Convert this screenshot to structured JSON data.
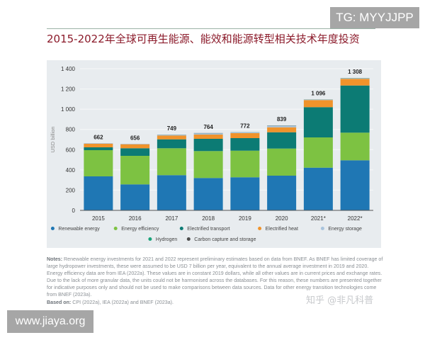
{
  "badge": "TG: MYYJJPP",
  "site": "www.jiaya.org",
  "watermark": "知乎 @非凡科普",
  "title": "2015-2022年全球可再生能源、能效和能源转型相关技术年度投资",
  "notes": {
    "label": "Notes:",
    "text": " Renewable energy investments for 2021 and 2022 represent preliminary estimates based on data from BNEF. As BNEF has limited coverage of large hydropower investments, these were assumed to be USD 7 billion per year, equivalent to the annual average investment in 2019 and 2020. Energy efficiency data are from IEA (2022a). These values are in constant 2019 dollars, while all other values are in current prices and exchange rates. Due to the lack of more granular data, the units could not be harmonised across the databases. For this reason, these numbers are presented together for indicative purposes only and should not be used to make comparisons between data sources. Data for other energy transition technologies come from BNEF (2023a).",
    "based_label": "Based on:",
    "based_text": " CPI (2022a), IEA (2022a) and BNEF (2023a)."
  },
  "chart_data": {
    "type": "bar",
    "stacked": true,
    "title": "",
    "xlabel": "",
    "ylabel": "USD billion",
    "ylim": [
      0,
      1400
    ],
    "yticks": [
      "0",
      "200",
      "400",
      "600",
      "800",
      "1 000",
      "1 200",
      "1 400"
    ],
    "ytick_values": [
      0,
      200,
      400,
      600,
      800,
      1000,
      1200,
      1400
    ],
    "grid": true,
    "legend_position": "bottom",
    "categories": [
      "2015",
      "2016",
      "2017",
      "2018",
      "2019",
      "2020",
      "2021*",
      "2022*"
    ],
    "totals": [
      "662",
      "656",
      "749",
      "764",
      "772",
      "839",
      "1 096",
      "1 308"
    ],
    "series": [
      {
        "name": "Renewable energy",
        "color": "#1f77b4",
        "values": [
          336,
          257,
          348,
          320,
          327,
          343,
          422,
          495
        ]
      },
      {
        "name": "Energy efficiency",
        "color": "#7dc242",
        "values": [
          259,
          282,
          266,
          266,
          263,
          268,
          299,
          273
        ]
      },
      {
        "name": "Electrified transport",
        "color": "#0c7b74",
        "values": [
          28,
          75,
          88,
          121,
          124,
          161,
          299,
          466
        ]
      },
      {
        "name": "Electrified heat",
        "color": "#f0932b",
        "values": [
          35,
          39,
          38,
          42,
          49,
          49,
          70,
          66
        ]
      },
      {
        "name": "Energy storage",
        "color": "#a9c4dd",
        "values": [
          3,
          2,
          7,
          12,
          7,
          15,
          4,
          5
        ]
      },
      {
        "name": "Hydrogen",
        "color": "#1aa37a",
        "values": [
          0,
          0,
          1,
          1,
          1,
          1,
          1,
          2
        ]
      },
      {
        "name": "Carbon capture and storage",
        "color": "#4d4d4d",
        "values": [
          1,
          1,
          1,
          2,
          1,
          2,
          1,
          1
        ]
      }
    ]
  }
}
